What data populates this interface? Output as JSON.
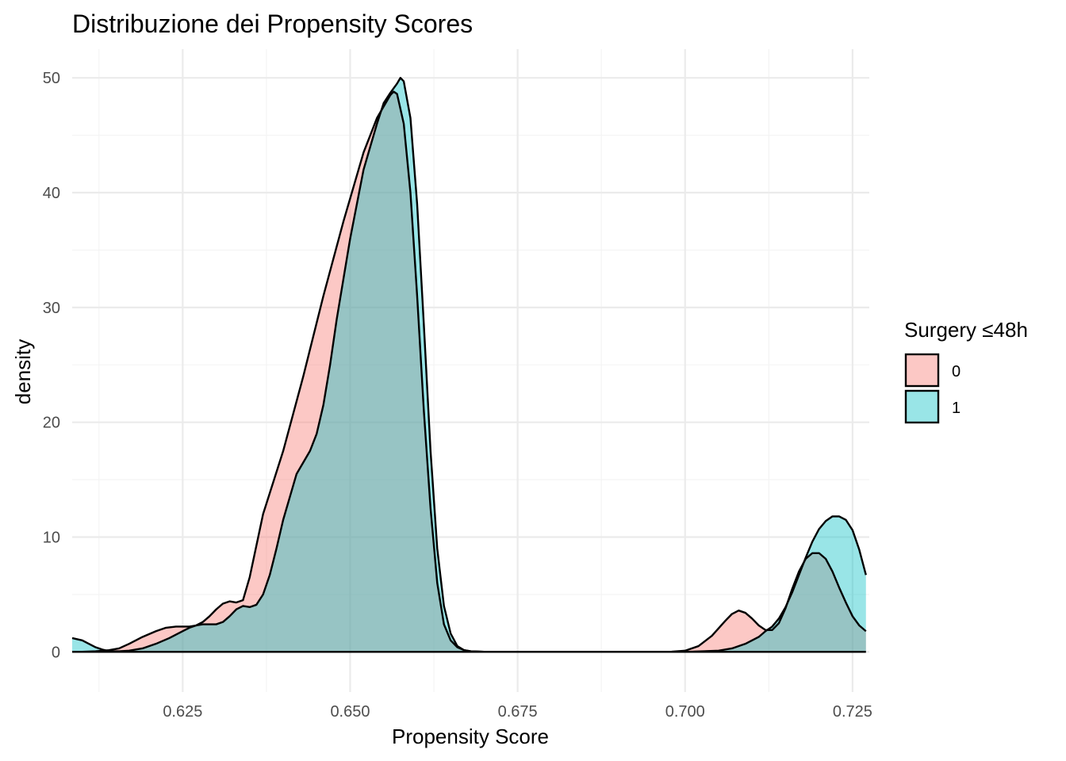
{
  "chart_data": {
    "type": "area",
    "title": "Distribuzione dei Propensity Scores",
    "xlabel": "Propensity Score",
    "ylabel": "density",
    "xlim": [
      0.6085,
      0.7275
    ],
    "ylim": [
      -3.5,
      52.5
    ],
    "x_ticks": [
      0.625,
      0.65,
      0.675,
      0.7,
      0.725
    ],
    "x_tick_labels": [
      "0.625",
      "0.650",
      "0.675",
      "0.700",
      "0.725"
    ],
    "y_ticks": [
      0,
      10,
      20,
      30,
      40,
      50
    ],
    "y_tick_labels": [
      "0",
      "10",
      "20",
      "30",
      "40",
      "50"
    ],
    "grid": true,
    "legend": {
      "title": "Surgery ≤48h",
      "position": "right"
    },
    "series": [
      {
        "name": "0",
        "color": "#F8766D",
        "fill_opacity": 0.4,
        "x": [
          0.6085,
          0.61,
          0.612,
          0.614,
          0.6155,
          0.617,
          0.619,
          0.621,
          0.6225,
          0.624,
          0.626,
          0.627,
          0.628,
          0.629,
          0.63,
          0.631,
          0.632,
          0.633,
          0.634,
          0.635,
          0.637,
          0.64,
          0.643,
          0.646,
          0.649,
          0.652,
          0.654,
          0.655,
          0.656,
          0.6565,
          0.657,
          0.658,
          0.659,
          0.66,
          0.661,
          0.662,
          0.663,
          0.664,
          0.665,
          0.666,
          0.667,
          0.668,
          0.67,
          0.672,
          0.675,
          0.69,
          0.698,
          0.7,
          0.702,
          0.704,
          0.706,
          0.707,
          0.708,
          0.709,
          0.71,
          0.711,
          0.712,
          0.713,
          0.714,
          0.715,
          0.716,
          0.717,
          0.718,
          0.719,
          0.72,
          0.721,
          0.722,
          0.723,
          0.724,
          0.725,
          0.726,
          0.727
        ],
        "y": [
          0,
          0.01,
          0.05,
          0.15,
          0.3,
          0.7,
          1.3,
          1.8,
          2.1,
          2.2,
          2.2,
          2.3,
          2.6,
          3.1,
          3.7,
          4.2,
          4.4,
          4.3,
          4.5,
          6.5,
          12.0,
          17.5,
          24.0,
          31.0,
          37.5,
          43.5,
          46.5,
          47.5,
          48.5,
          48.8,
          48.6,
          46.0,
          40.0,
          31.0,
          21.0,
          12.5,
          6.0,
          2.4,
          1.0,
          0.4,
          0.15,
          0.05,
          0.01,
          0,
          0,
          0,
          0.02,
          0.1,
          0.5,
          1.4,
          2.7,
          3.3,
          3.6,
          3.4,
          2.9,
          2.3,
          1.9,
          1.9,
          2.5,
          3.8,
          5.5,
          7.0,
          8.1,
          8.6,
          8.6,
          8.1,
          7.0,
          5.6,
          4.3,
          3.1,
          2.3,
          1.8
        ]
      },
      {
        "name": "1",
        "color": "#00BFC4",
        "fill_opacity": 0.4,
        "x": [
          0.6085,
          0.61,
          0.611,
          0.612,
          0.613,
          0.614,
          0.6155,
          0.617,
          0.619,
          0.621,
          0.623,
          0.625,
          0.626,
          0.627,
          0.628,
          0.629,
          0.63,
          0.631,
          0.632,
          0.633,
          0.634,
          0.635,
          0.636,
          0.637,
          0.638,
          0.639,
          0.64,
          0.641,
          0.642,
          0.643,
          0.644,
          0.645,
          0.646,
          0.647,
          0.648,
          0.65,
          0.652,
          0.654,
          0.655,
          0.656,
          0.657,
          0.6575,
          0.658,
          0.659,
          0.66,
          0.661,
          0.662,
          0.663,
          0.664,
          0.665,
          0.666,
          0.667,
          0.668,
          0.67,
          0.672,
          0.675,
          0.7,
          0.705,
          0.707,
          0.709,
          0.711,
          0.712,
          0.713,
          0.714,
          0.715,
          0.716,
          0.717,
          0.718,
          0.719,
          0.72,
          0.721,
          0.722,
          0.723,
          0.724,
          0.725,
          0.726,
          0.727
        ],
        "y": [
          1.2,
          1.0,
          0.7,
          0.4,
          0.2,
          0.06,
          0.05,
          0.1,
          0.3,
          0.7,
          1.2,
          1.8,
          2.1,
          2.3,
          2.4,
          2.4,
          2.4,
          2.6,
          3.1,
          3.7,
          4.0,
          3.9,
          4.1,
          5.0,
          6.7,
          9.0,
          11.5,
          13.5,
          15.5,
          16.5,
          17.5,
          19.0,
          21.5,
          25.0,
          29.0,
          36.0,
          42.0,
          46.0,
          47.8,
          48.7,
          49.5,
          50.0,
          49.7,
          46.5,
          39.0,
          28.5,
          17.5,
          9.0,
          4.0,
          1.6,
          0.5,
          0.15,
          0.05,
          0.01,
          0,
          0,
          0,
          0.1,
          0.3,
          0.7,
          1.3,
          1.8,
          2.2,
          2.9,
          3.9,
          5.2,
          6.7,
          8.2,
          9.6,
          10.7,
          11.4,
          11.8,
          11.8,
          11.5,
          10.6,
          8.9,
          6.7
        ]
      }
    ]
  }
}
